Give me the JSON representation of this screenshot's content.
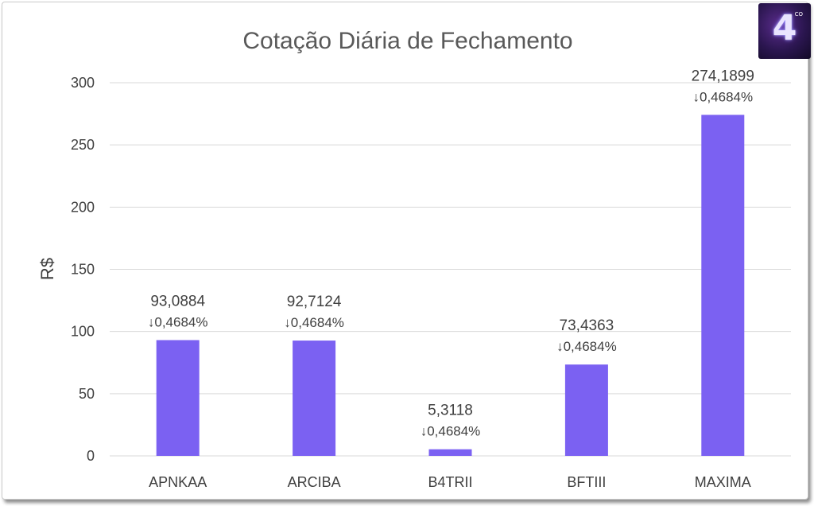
{
  "chart_data": {
    "type": "bar",
    "title": "Cotação Diária de Fechamento",
    "ylabel": "R$",
    "xlabel": "",
    "ylim": [
      0,
      300
    ],
    "yticks": [
      "0",
      "50",
      "100",
      "150",
      "200",
      "250",
      "300"
    ],
    "ytick_values": [
      0,
      50,
      100,
      150,
      200,
      250,
      300
    ],
    "categories": [
      "APNKAA",
      "ARCIBA",
      "B4TRII",
      "BFTIII",
      "MAXIMA"
    ],
    "values": [
      93.0884,
      92.7124,
      5.3118,
      73.4363,
      274.1899
    ],
    "value_labels": [
      "93,0884",
      "92,7124",
      "5,3118",
      "73,4363",
      "274,1899"
    ],
    "change_labels": [
      "↓0,4684%",
      "↓0,4684%",
      "↓0,4684%",
      "↓0,4684%",
      "↓0,4684%"
    ],
    "grid": true,
    "legend": "none",
    "bar_color": "#7b61f2"
  },
  "logo": {
    "glyph": "4",
    "superscript": "CO",
    "icon": "brand-logo-icon"
  }
}
